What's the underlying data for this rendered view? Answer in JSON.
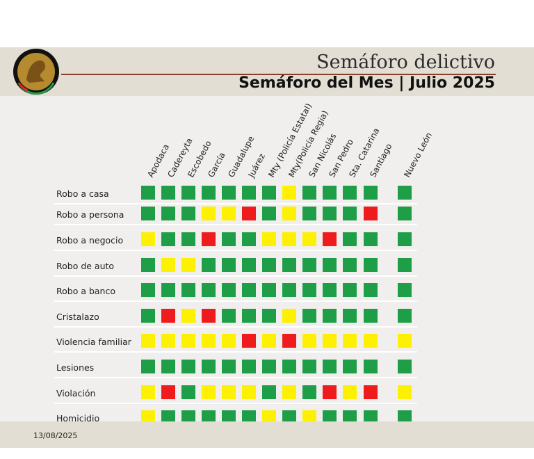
{
  "header": {
    "title": "Semáforo delictivo",
    "subtitle": "Semáforo del Mes |  Julio  2025"
  },
  "logo": {
    "name": "seal-logo",
    "text": "FISCALÍA GENERAL DE JUSTICIA DEL ESTADO · NUEVO LEÓN"
  },
  "footer": {
    "date": "13/08/2025"
  },
  "colors": {
    "green": "#1f9e48",
    "yellow": "#fdf000",
    "red": "#ee1c1c"
  },
  "chart_data": {
    "type": "heatmap",
    "columns": [
      "Apodaca",
      "Cadereyta",
      "Escobedo",
      "García",
      "Guadalupe",
      "Juárez",
      "Mty (Policía Estatal)",
      "Mty(Policía Regia)",
      "San Nicolás",
      "San Pedro",
      "Sta. Catarina",
      "Santiago",
      "Nuevo León"
    ],
    "rows": [
      "Robo a casa",
      "Robo a persona",
      "Robo a negocio",
      "Robo de auto",
      "Robo a banco",
      "Cristalazo",
      "Violencia familiar",
      "Lesiones",
      "Violación",
      "Homicidio"
    ],
    "legend": {
      "G": "green",
      "Y": "yellow",
      "R": "red"
    },
    "values": [
      [
        "G",
        "G",
        "G",
        "G",
        "G",
        "G",
        "G",
        "Y",
        "G",
        "G",
        "G",
        "G",
        "G"
      ],
      [
        "G",
        "G",
        "G",
        "Y",
        "Y",
        "R",
        "G",
        "Y",
        "G",
        "G",
        "G",
        "R",
        "G"
      ],
      [
        "Y",
        "G",
        "G",
        "R",
        "G",
        "G",
        "Y",
        "Y",
        "Y",
        "R",
        "G",
        "G",
        "G"
      ],
      [
        "G",
        "Y",
        "Y",
        "G",
        "G",
        "G",
        "G",
        "G",
        "G",
        "G",
        "G",
        "G",
        "G"
      ],
      [
        "G",
        "G",
        "G",
        "G",
        "G",
        "G",
        "G",
        "G",
        "G",
        "G",
        "G",
        "G",
        "G"
      ],
      [
        "G",
        "R",
        "Y",
        "R",
        "G",
        "G",
        "G",
        "Y",
        "G",
        "G",
        "G",
        "G",
        "G"
      ],
      [
        "Y",
        "Y",
        "Y",
        "Y",
        "Y",
        "R",
        "Y",
        "R",
        "Y",
        "Y",
        "Y",
        "Y",
        "Y"
      ],
      [
        "G",
        "G",
        "G",
        "G",
        "G",
        "G",
        "G",
        "G",
        "G",
        "G",
        "G",
        "G",
        "G"
      ],
      [
        "Y",
        "R",
        "G",
        "Y",
        "Y",
        "Y",
        "G",
        "Y",
        "G",
        "R",
        "Y",
        "R",
        "Y"
      ],
      [
        "Y",
        "G",
        "G",
        "G",
        "G",
        "G",
        "Y",
        "G",
        "Y",
        "G",
        "G",
        "G",
        "G"
      ]
    ]
  }
}
